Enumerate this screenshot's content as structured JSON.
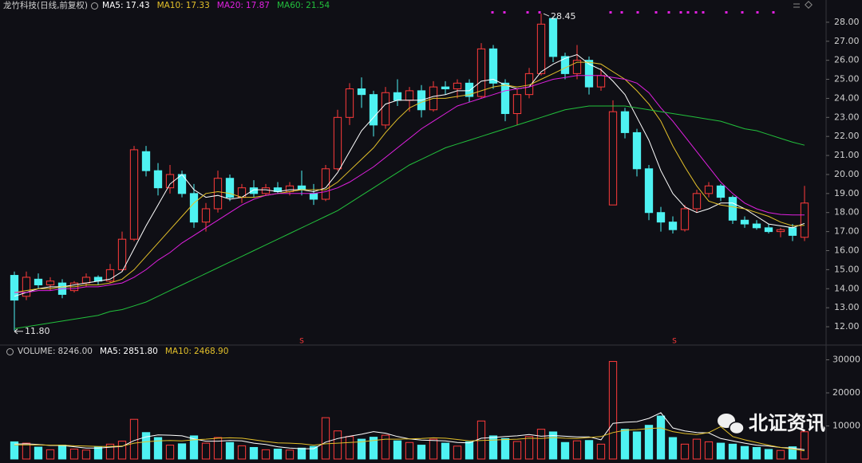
{
  "chart_data": {
    "type": "candlestick",
    "title": "龙竹科技(日线,前复权)",
    "open": [
      14.7,
      13.6,
      14.5,
      14.2,
      14.3,
      13.9,
      14.3,
      14.6,
      14.4,
      15.0,
      16.6,
      21.2,
      20.2,
      19.3,
      20.0,
      19.0,
      17.5,
      18.2,
      19.8,
      18.8,
      19.3,
      19.0,
      19.3,
      19.1,
      19.4,
      19.0,
      18.7,
      20.3,
      23.0,
      24.5,
      24.2,
      22.6,
      24.3,
      23.9,
      24.4,
      23.4,
      24.6,
      24.5,
      24.8,
      24.1,
      26.6,
      24.8,
      23.2,
      24.2,
      25.3,
      28.2,
      26.2,
      25.3,
      26.0,
      24.6,
      18.4,
      23.3,
      22.2,
      20.3,
      18.0,
      17.5,
      17.1,
      18.2,
      19.0,
      19.4,
      18.8,
      17.6,
      17.4,
      17.2,
      17.0,
      17.2,
      16.7
    ],
    "high": [
      14.9,
      14.9,
      14.8,
      14.6,
      14.5,
      14.4,
      14.8,
      14.7,
      15.3,
      17.0,
      21.5,
      21.5,
      20.6,
      20.5,
      20.2,
      19.5,
      18.5,
      20.2,
      20.0,
      19.5,
      19.7,
      19.5,
      19.6,
      19.6,
      20.2,
      19.5,
      20.5,
      23.4,
      24.8,
      25.1,
      24.4,
      24.6,
      25.0,
      24.6,
      24.7,
      24.9,
      24.9,
      25.0,
      25.0,
      26.9,
      26.8,
      25.0,
      24.5,
      25.6,
      28.45,
      28.3,
      26.4,
      26.8,
      26.2,
      25.6,
      23.9,
      23.5,
      22.4,
      20.5,
      18.3,
      17.8,
      18.4,
      19.2,
      19.6,
      19.5,
      18.9,
      17.8,
      17.6,
      17.4,
      17.2,
      17.4,
      19.4
    ],
    "low": [
      11.8,
      13.4,
      14.0,
      13.9,
      13.5,
      13.8,
      14.1,
      14.2,
      14.3,
      14.9,
      16.5,
      19.9,
      18.9,
      19.0,
      18.8,
      17.2,
      17.0,
      18.0,
      18.6,
      18.5,
      18.8,
      18.9,
      19.0,
      18.9,
      18.9,
      18.4,
      18.6,
      20.2,
      22.6,
      23.5,
      22.0,
      22.4,
      23.6,
      23.3,
      23.0,
      23.3,
      24.2,
      24.0,
      23.8,
      24.0,
      24.5,
      22.8,
      22.6,
      24.0,
      25.2,
      25.9,
      25.0,
      25.0,
      24.2,
      24.4,
      18.4,
      21.9,
      19.9,
      17.6,
      17.0,
      16.9,
      17.0,
      18.0,
      18.8,
      18.6,
      17.4,
      17.2,
      17.1,
      16.9,
      16.7,
      16.5,
      16.5
    ],
    "close": [
      13.4,
      14.6,
      14.2,
      14.4,
      13.7,
      14.3,
      14.6,
      14.4,
      15.0,
      16.6,
      21.3,
      20.2,
      19.3,
      20.0,
      19.0,
      17.5,
      18.2,
      19.8,
      18.8,
      19.3,
      19.0,
      19.3,
      19.1,
      19.4,
      19.2,
      18.7,
      20.3,
      23.0,
      24.5,
      24.2,
      22.6,
      24.3,
      23.9,
      24.4,
      23.4,
      24.6,
      24.5,
      24.8,
      24.1,
      26.6,
      24.8,
      23.2,
      24.2,
      25.3,
      27.9,
      26.2,
      25.3,
      26.0,
      24.6,
      25.2,
      23.3,
      22.2,
      20.3,
      18.0,
      17.5,
      17.1,
      18.2,
      19.0,
      19.4,
      18.8,
      17.6,
      17.4,
      17.2,
      17.0,
      17.1,
      16.8,
      18.5
    ],
    "up_color": "#ff3b3b",
    "down_color": "#4ef2f2",
    "ylim": [
      11.08,
      28.54
    ],
    "yticks": [
      {
        "value": 12,
        "label": "12.00"
      },
      {
        "value": 13,
        "label": "13.00"
      },
      {
        "value": 14,
        "label": "14.00"
      },
      {
        "value": 15,
        "label": "15.00"
      },
      {
        "value": 16,
        "label": "16.00"
      },
      {
        "value": 17,
        "label": "17.00"
      },
      {
        "value": 18,
        "label": "18.00"
      },
      {
        "value": 19,
        "label": "19.00"
      },
      {
        "value": 20,
        "label": "20.00"
      },
      {
        "value": 21,
        "label": "21.00"
      },
      {
        "value": 22,
        "label": "22.00"
      },
      {
        "value": 23,
        "label": "23.00"
      },
      {
        "value": 24,
        "label": "24.00"
      },
      {
        "value": 25,
        "label": "25.00"
      },
      {
        "value": 26,
        "label": "26.00"
      },
      {
        "value": 27,
        "label": "27.00"
      },
      {
        "value": 28,
        "label": "28.00"
      }
    ],
    "series": [
      {
        "name": "MA5:",
        "color": "#ffffff",
        "legend_value": 17.43,
        "values": [
          13.6,
          13.8,
          14.0,
          14.1,
          14.1,
          14.2,
          14.3,
          14.4,
          14.5,
          14.9,
          16.1,
          17.3,
          18.4,
          19.5,
          20.0,
          19.2,
          18.8,
          18.9,
          18.7,
          18.8,
          19.2,
          19.2,
          19.1,
          19.2,
          19.2,
          19.1,
          19.3,
          20.1,
          21.2,
          22.3,
          23.0,
          23.7,
          23.9,
          23.9,
          23.9,
          24.1,
          24.2,
          24.4,
          24.4,
          24.9,
          25.0,
          24.7,
          24.5,
          24.6,
          25.4,
          25.8,
          26.1,
          26.3,
          25.8,
          25.5,
          24.9,
          24.2,
          23.0,
          21.8,
          20.2,
          19.0,
          18.3,
          18.0,
          18.2,
          18.5,
          18.5,
          18.2,
          17.8,
          17.4,
          17.3,
          17.2,
          17.43
        ]
      },
      {
        "name": "MA10:",
        "color": "#e3c02a",
        "legend_value": 17.33,
        "values": [
          13.8,
          13.9,
          14.0,
          14.0,
          14.1,
          14.1,
          14.2,
          14.2,
          14.3,
          14.5,
          15.0,
          15.7,
          16.4,
          17.1,
          17.8,
          18.5,
          19.0,
          19.1,
          19.0,
          18.8,
          18.8,
          18.9,
          19.0,
          19.1,
          19.2,
          19.2,
          19.2,
          19.6,
          20.2,
          20.8,
          21.4,
          22.2,
          22.9,
          23.5,
          23.8,
          24.0,
          24.0,
          24.1,
          24.2,
          24.4,
          24.6,
          24.7,
          24.6,
          24.7,
          25.0,
          25.3,
          25.6,
          25.9,
          25.9,
          25.8,
          25.4,
          25.0,
          24.4,
          23.7,
          22.8,
          21.5,
          20.4,
          19.4,
          18.6,
          18.4,
          18.3,
          18.2,
          18.0,
          17.8,
          17.5,
          17.3,
          17.33
        ]
      },
      {
        "name": "MA20:",
        "color": "#e020e0",
        "legend_value": 17.87,
        "values": [
          13.8,
          13.8,
          13.9,
          13.9,
          14.0,
          14.0,
          14.1,
          14.1,
          14.2,
          14.3,
          14.6,
          15.0,
          15.5,
          15.9,
          16.4,
          16.8,
          17.2,
          17.6,
          18.0,
          18.4,
          18.7,
          18.9,
          19.0,
          19.0,
          19.0,
          19.0,
          19.1,
          19.3,
          19.6,
          20.0,
          20.4,
          20.9,
          21.4,
          21.9,
          22.4,
          22.8,
          23.2,
          23.6,
          23.8,
          24.0,
          24.2,
          24.4,
          24.5,
          24.6,
          24.8,
          25.0,
          25.1,
          25.2,
          25.2,
          25.2,
          25.1,
          25.0,
          24.8,
          24.3,
          23.5,
          22.8,
          22.0,
          21.2,
          20.4,
          19.6,
          19.0,
          18.5,
          18.2,
          18.0,
          17.9,
          17.87,
          17.87
        ]
      },
      {
        "name": "MA60:",
        "color": "#22c03c",
        "legend_value": 21.54,
        "values": [
          11.9,
          12.0,
          12.1,
          12.2,
          12.3,
          12.4,
          12.5,
          12.6,
          12.8,
          12.9,
          13.1,
          13.3,
          13.6,
          13.9,
          14.2,
          14.5,
          14.8,
          15.1,
          15.4,
          15.7,
          16.0,
          16.3,
          16.6,
          16.9,
          17.2,
          17.5,
          17.8,
          18.1,
          18.5,
          18.9,
          19.3,
          19.7,
          20.1,
          20.5,
          20.8,
          21.1,
          21.4,
          21.6,
          21.8,
          22.0,
          22.2,
          22.4,
          22.6,
          22.8,
          23.0,
          23.2,
          23.4,
          23.5,
          23.6,
          23.6,
          23.6,
          23.6,
          23.5,
          23.4,
          23.3,
          23.2,
          23.1,
          23.0,
          22.9,
          22.8,
          22.6,
          22.4,
          22.3,
          22.1,
          21.9,
          21.7,
          21.54
        ]
      }
    ],
    "max_label": 28.45,
    "min_label": {
      "value": 11.8,
      "label": "11.80"
    },
    "signal_label": "S",
    "volume": {
      "name": "VOLUME:",
      "legend_value": {
        "value": 8246,
        "label": "8246.00"
      },
      "values": [
        5200,
        4800,
        3600,
        2800,
        4200,
        3000,
        2700,
        3600,
        4500,
        5400,
        12000,
        8000,
        6500,
        4200,
        4600,
        7000,
        4800,
        6500,
        5000,
        4000,
        3500,
        2800,
        3000,
        2700,
        3300,
        3800,
        12500,
        8500,
        6800,
        6000,
        6600,
        7200,
        5500,
        5000,
        4200,
        6000,
        4800,
        3900,
        5200,
        11500,
        7000,
        6200,
        5300,
        6800,
        9000,
        8200,
        5000,
        5500,
        5600,
        4500,
        29500,
        9000,
        8200,
        10200,
        13000,
        6500,
        4500,
        6000,
        5200,
        4800,
        4500,
        3800,
        3500,
        2900,
        2600,
        3700,
        8246
      ],
      "ylim": [
        0,
        32770
      ],
      "yticks": [
        10000,
        20000,
        30000
      ],
      "series": [
        {
          "name": "MA5:",
          "color": "#ffffff",
          "legend_value": {
            "value": 2851.8,
            "label": "2851.80"
          },
          "values": [
            4500,
            4600,
            4400,
            4100,
            4100,
            3700,
            3300,
            3300,
            3600,
            3800,
            5600,
            6700,
            7300,
            7200,
            7000,
            6100,
            5400,
            5400,
            5600,
            5500,
            4800,
            4400,
            3700,
            3300,
            3100,
            3100,
            5100,
            6200,
            6900,
            7500,
            8300,
            7800,
            6800,
            6100,
            5700,
            5600,
            5500,
            5000,
            4900,
            6300,
            6500,
            6800,
            7000,
            7400,
            6900,
            7100,
            6900,
            6700,
            6700,
            5800,
            10800,
            11100,
            11300,
            12300,
            14000,
            9400,
            8500,
            8000,
            7900,
            6200,
            5500,
            4800,
            4200,
            3900,
            3500,
            3300,
            2851.8
          ]
        },
        {
          "name": "MA10:",
          "color": "#e3c02a",
          "legend_value": {
            "value": 2468.9,
            "label": "2468.90"
          },
          "values": [
            4300,
            4300,
            4300,
            4200,
            4200,
            4000,
            3900,
            3800,
            3800,
            3900,
            4800,
            5200,
            5500,
            5600,
            5500,
            5800,
            6000,
            6300,
            6400,
            6300,
            5800,
            5300,
            4900,
            4800,
            4600,
            4200,
            4600,
            4800,
            5000,
            5200,
            5600,
            6000,
            6000,
            6100,
            6200,
            6400,
            6300,
            5900,
            5500,
            5600,
            5700,
            5900,
            6000,
            6300,
            6200,
            6500,
            6300,
            6200,
            6500,
            6800,
            8000,
            8700,
            8900,
            9200,
            9400,
            8300,
            7700,
            7400,
            8000,
            9800,
            6800,
            5800,
            5000,
            4200,
            3500,
            3000,
            2468.9
          ]
        }
      ]
    }
  },
  "watermark": "北证资讯"
}
